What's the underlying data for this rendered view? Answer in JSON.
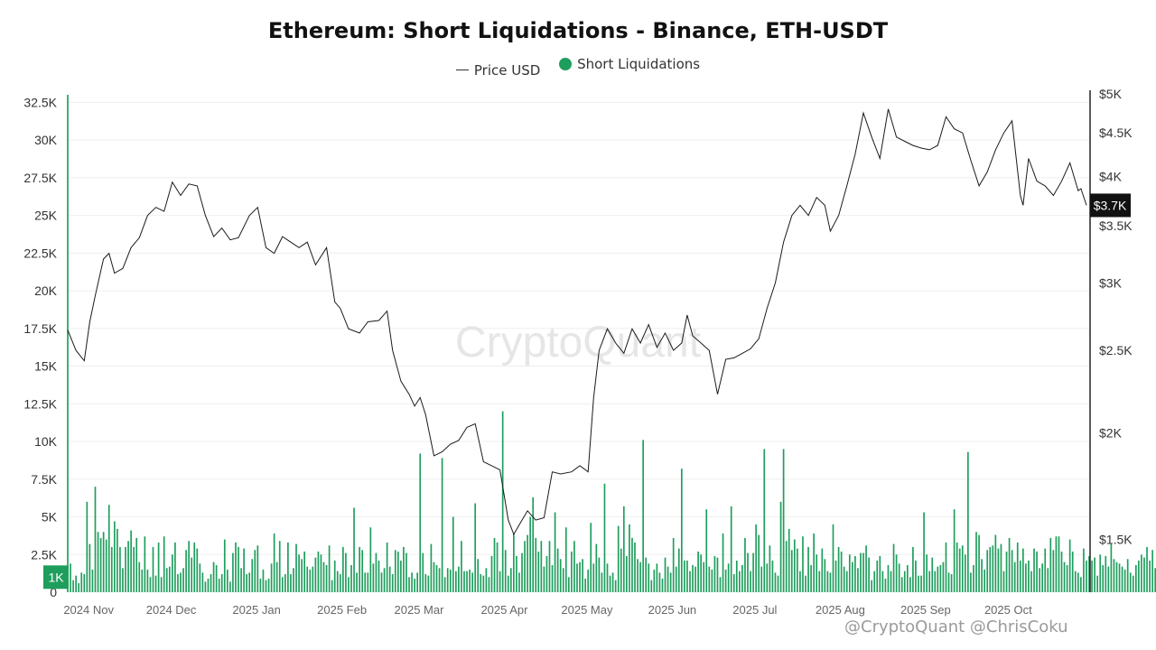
{
  "colors": {
    "liq": "#1e9e5c",
    "price": "#1a1a1a",
    "grid": "#efefef"
  },
  "watermark_text": "@CryptoQuant @ChrisCoku",
  "chart_data": {
    "type": "bar+line",
    "title": "Ethereum: Short Liquidations - Binance, ETH-USDT",
    "legend": {
      "placement": "top-center",
      "price_label": "Price USD",
      "liq_label": "Short Liquidations"
    },
    "watermark": "CryptoQuant",
    "x_range": [
      "2024-10-29",
      "2025-11-04"
    ],
    "x_ticks": [
      {
        "date": "2024-11-01",
        "label": "2024 Nov"
      },
      {
        "date": "2024-12-01",
        "label": "2024 Dec"
      },
      {
        "date": "2025-01-01",
        "label": "2025 Jan"
      },
      {
        "date": "2025-02-01",
        "label": "2025 Feb"
      },
      {
        "date": "2025-03-01",
        "label": "2025 Mar"
      },
      {
        "date": "2025-04-01",
        "label": "2025 Apr"
      },
      {
        "date": "2025-05-01",
        "label": "2025 May"
      },
      {
        "date": "2025-06-01",
        "label": "2025 Jun"
      },
      {
        "date": "2025-07-01",
        "label": "2025 Jul"
      },
      {
        "date": "2025-08-01",
        "label": "2025 Aug"
      },
      {
        "date": "2025-09-01",
        "label": "2025 Sep"
      },
      {
        "date": "2025-10-01",
        "label": "2025 Oct"
      }
    ],
    "y_left": {
      "range": [
        0,
        33300
      ],
      "ticks": [
        0,
        2500,
        5000,
        7500,
        10000,
        12500,
        15000,
        17500,
        20000,
        22500,
        25000,
        27500,
        30000,
        32500
      ],
      "tick_labels": [
        "0",
        "2.5K",
        "5K",
        "7.5K",
        "10K",
        "12.5K",
        "15K",
        "17.5K",
        "20K",
        "22.5K",
        "25K",
        "27.5K",
        "30K",
        "32.5K"
      ],
      "marker": {
        "value": 1000,
        "label": "1K"
      }
    },
    "y_right": {
      "scale": "log",
      "range": [
        1300,
        5050
      ],
      "ticks": [
        1500,
        2000,
        2500,
        3000,
        3500,
        4000,
        4500,
        5000
      ],
      "tick_labels": [
        "$1.5K",
        "$2K",
        "$2.5K",
        "$3K",
        "$3.5K",
        "$4K",
        "$4.5K",
        "$5K"
      ],
      "marker": {
        "value": 3700,
        "label": "$3.7K"
      }
    },
    "liq_start": "2024-10-29",
    "short_liquidations": [
      33000,
      1900,
      800,
      1100,
      600,
      1300,
      1200,
      6000,
      3200,
      1500,
      7000,
      4000,
      3600,
      4000,
      3500,
      5800,
      3000,
      4700,
      4200,
      3000,
      1600,
      3000,
      3400,
      4100,
      3000,
      3600,
      2000,
      1500,
      3700,
      1500,
      1000,
      3000,
      1100,
      3300,
      1000,
      3700,
      1600,
      1700,
      2500,
      3300,
      1200,
      1300,
      1600,
      2800,
      3400,
      2300,
      3300,
      2900,
      1900,
      1300,
      700,
      900,
      1200,
      2000,
      1800,
      900,
      1200,
      3500,
      1500,
      700,
      2600,
      3300,
      3000,
      1600,
      2900,
      1200,
      1300,
      2200,
      2800,
      3100,
      900,
      1500,
      800,
      900,
      1900,
      3900,
      2000,
      3400,
      1000,
      1200,
      3300,
      1200,
      1600,
      3200,
      2500,
      2200,
      2700,
      1700,
      1500,
      1700,
      2300,
      2700,
      2500,
      2000,
      1800,
      3100,
      800,
      2100,
      1400,
      1200,
      3000,
      2600,
      1000,
      1800,
      5600,
      1300,
      3000,
      2800,
      1300,
      1300,
      4300,
      1900,
      2600,
      2100,
      1300,
      1600,
      3300,
      1700,
      1200,
      2800,
      2700,
      2100,
      3000,
      2600,
      1000,
      1300,
      900,
      1300,
      9200,
      2600,
      1200,
      1100,
      3200,
      2000,
      1800,
      1600,
      8900,
      1000,
      1600,
      1500,
      5000,
      1400,
      1700,
      3400,
      1400,
      1400,
      1500,
      1300,
      5900,
      2200,
      1200,
      1100,
      1600,
      1000,
      2400,
      3600,
      3300,
      1400,
      12000,
      2800,
      1100,
      1600,
      3900,
      2400,
      1300,
      2600,
      3400,
      3800,
      5000,
      6300,
      3600,
      2700,
      3400,
      1700,
      2400,
      3400,
      1800,
      5300,
      2900,
      2200,
      1600,
      4300,
      1000,
      2700,
      3400,
      1900,
      2000,
      2200,
      900,
      1500,
      4600,
      1900,
      3200,
      2300,
      1300,
      7200,
      1900,
      1100,
      1300,
      800,
      4400,
      2900,
      5700,
      2400,
      4500,
      3600,
      3300,
      2200,
      2000,
      10100,
      2300,
      1900,
      800,
      1500,
      1900,
      1300,
      900,
      2300,
      1700,
      1300,
      3600,
      1700,
      2900,
      8200,
      2100,
      2100,
      1400,
      1800,
      1700,
      2700,
      2500,
      2000,
      5500,
      1700,
      1500,
      2400,
      2300,
      1000,
      3900,
      1500,
      1900,
      5700,
      1200,
      2100,
      1400,
      1800,
      3600,
      2600,
      1400,
      2600,
      4500,
      3800,
      1700,
      9500,
      1900,
      3100,
      2100,
      1300,
      1100,
      6000,
      9500,
      3400,
      4200,
      2800,
      3500,
      2900,
      1400,
      3700,
      1100,
      3000,
      1800,
      3900,
      2500,
      1400,
      2900,
      2200,
      1400,
      1300,
      4500,
      2100,
      3000,
      2700,
      1700,
      1400,
      2500,
      2000,
      2400,
      1600,
      2600,
      2600,
      3100,
      2300,
      800,
      1400,
      2100,
      2400,
      1400,
      900,
      1800,
      1400,
      3200,
      2500,
      1900,
      1000,
      1400,
      1800,
      1000,
      3000,
      2100,
      1100,
      1100,
      5300,
      2500,
      1400,
      2300,
      1400,
      1700,
      1800,
      2000,
      3300,
      1300,
      1200,
      5500,
      3300,
      2900,
      3100,
      2500,
      9300,
      1300,
      1800,
      4000,
      3800,
      2200,
      1500,
      2800,
      3000,
      3100,
      3800,
      2900,
      3200,
      1400,
      2700,
      3600,
      2800,
      2000,
      3300,
      2100,
      2900,
      1900,
      2100,
      1400,
      2900,
      2700,
      1600,
      1900,
      2900,
      1600,
      3600,
      2800,
      3700,
      3700,
      2700,
      2000,
      1800,
      3500,
      2700,
      1400,
      1300,
      1000,
      2900,
      2100,
      2400,
      2100,
      2300,
      1100,
      2500,
      1800,
      2400,
      1700,
      3200,
      2200,
      2000,
      1900,
      1700,
      1500,
      2200,
      1300,
      1100,
      1800,
      2100,
      2500,
      2300,
      3000,
      2100,
      2800,
      1600,
      2100,
      2700,
      2000,
      5100,
      1800,
      1400,
      2600,
      1900,
      3100,
      2000,
      1200,
      1200,
      2700,
      2500,
      2500,
      1500,
      1900,
      2100,
      1800,
      32600,
      2700,
      3100,
      2500,
      2200,
      5300,
      2500,
      1700,
      2100,
      1900,
      1800,
      2000,
      1600,
      2300,
      2900,
      1100,
      3600,
      1200,
      1300,
      1400,
      1700,
      1100,
      1900,
      1600
    ],
    "price_usd": [
      [
        "2024-10-29",
        2640
      ],
      [
        "2024-11-01",
        2500
      ],
      [
        "2024-11-04",
        2430
      ],
      [
        "2024-11-06",
        2700
      ],
      [
        "2024-11-08",
        2900
      ],
      [
        "2024-11-11",
        3200
      ],
      [
        "2024-11-13",
        3250
      ],
      [
        "2024-11-15",
        3080
      ],
      [
        "2024-11-18",
        3120
      ],
      [
        "2024-11-21",
        3300
      ],
      [
        "2024-11-24",
        3390
      ],
      [
        "2024-11-27",
        3600
      ],
      [
        "2024-11-30",
        3680
      ],
      [
        "2024-12-03",
        3640
      ],
      [
        "2024-12-06",
        3940
      ],
      [
        "2024-12-09",
        3800
      ],
      [
        "2024-12-12",
        3920
      ],
      [
        "2024-12-15",
        3900
      ],
      [
        "2024-12-18",
        3600
      ],
      [
        "2024-12-21",
        3400
      ],
      [
        "2024-12-24",
        3480
      ],
      [
        "2024-12-27",
        3370
      ],
      [
        "2024-12-30",
        3390
      ],
      [
        "2025-01-03",
        3600
      ],
      [
        "2025-01-06",
        3680
      ],
      [
        "2025-01-09",
        3300
      ],
      [
        "2025-01-12",
        3250
      ],
      [
        "2025-01-15",
        3400
      ],
      [
        "2025-01-18",
        3350
      ],
      [
        "2025-01-21",
        3300
      ],
      [
        "2025-01-24",
        3350
      ],
      [
        "2025-01-27",
        3150
      ],
      [
        "2025-01-31",
        3300
      ],
      [
        "2025-02-03",
        2850
      ],
      [
        "2025-02-05",
        2800
      ],
      [
        "2025-02-08",
        2650
      ],
      [
        "2025-02-12",
        2620
      ],
      [
        "2025-02-15",
        2700
      ],
      [
        "2025-02-19",
        2710
      ],
      [
        "2025-02-22",
        2780
      ],
      [
        "2025-02-24",
        2500
      ],
      [
        "2025-02-27",
        2300
      ],
      [
        "2025-03-02",
        2220
      ],
      [
        "2025-03-04",
        2150
      ],
      [
        "2025-03-06",
        2200
      ],
      [
        "2025-03-08",
        2100
      ],
      [
        "2025-03-11",
        1880
      ],
      [
        "2025-03-14",
        1900
      ],
      [
        "2025-03-17",
        1940
      ],
      [
        "2025-03-20",
        1960
      ],
      [
        "2025-03-23",
        2030
      ],
      [
        "2025-03-26",
        2050
      ],
      [
        "2025-03-29",
        1850
      ],
      [
        "2025-04-01",
        1830
      ],
      [
        "2025-04-04",
        1810
      ],
      [
        "2025-04-07",
        1580
      ],
      [
        "2025-04-09",
        1520
      ],
      [
        "2025-04-11",
        1560
      ],
      [
        "2025-04-14",
        1620
      ],
      [
        "2025-04-17",
        1580
      ],
      [
        "2025-04-20",
        1590
      ],
      [
        "2025-04-23",
        1800
      ],
      [
        "2025-04-26",
        1790
      ],
      [
        "2025-04-30",
        1800
      ],
      [
        "2025-05-03",
        1830
      ],
      [
        "2025-05-06",
        1800
      ],
      [
        "2025-05-08",
        2200
      ],
      [
        "2025-05-10",
        2500
      ],
      [
        "2025-05-13",
        2650
      ],
      [
        "2025-05-16",
        2550
      ],
      [
        "2025-05-19",
        2480
      ],
      [
        "2025-05-22",
        2650
      ],
      [
        "2025-05-25",
        2550
      ],
      [
        "2025-05-28",
        2680
      ],
      [
        "2025-05-31",
        2520
      ],
      [
        "2025-06-03",
        2620
      ],
      [
        "2025-06-06",
        2500
      ],
      [
        "2025-06-09",
        2550
      ],
      [
        "2025-06-11",
        2750
      ],
      [
        "2025-06-13",
        2600
      ],
      [
        "2025-06-16",
        2550
      ],
      [
        "2025-06-19",
        2500
      ],
      [
        "2025-06-22",
        2220
      ],
      [
        "2025-06-25",
        2440
      ],
      [
        "2025-06-28",
        2450
      ],
      [
        "2025-07-01",
        2480
      ],
      [
        "2025-07-04",
        2510
      ],
      [
        "2025-07-07",
        2580
      ],
      [
        "2025-07-10",
        2800
      ],
      [
        "2025-07-13",
        3000
      ],
      [
        "2025-07-16",
        3350
      ],
      [
        "2025-07-19",
        3600
      ],
      [
        "2025-07-22",
        3700
      ],
      [
        "2025-07-25",
        3600
      ],
      [
        "2025-07-28",
        3780
      ],
      [
        "2025-07-31",
        3700
      ],
      [
        "2025-08-02",
        3450
      ],
      [
        "2025-08-05",
        3600
      ],
      [
        "2025-08-08",
        3900
      ],
      [
        "2025-08-11",
        4250
      ],
      [
        "2025-08-14",
        4750
      ],
      [
        "2025-08-17",
        4450
      ],
      [
        "2025-08-20",
        4200
      ],
      [
        "2025-08-23",
        4800
      ],
      [
        "2025-08-26",
        4450
      ],
      [
        "2025-08-29",
        4400
      ],
      [
        "2025-09-01",
        4350
      ],
      [
        "2025-09-04",
        4320
      ],
      [
        "2025-09-07",
        4300
      ],
      [
        "2025-09-10",
        4350
      ],
      [
        "2025-09-13",
        4700
      ],
      [
        "2025-09-16",
        4550
      ],
      [
        "2025-09-19",
        4500
      ],
      [
        "2025-09-22",
        4180
      ],
      [
        "2025-09-25",
        3900
      ],
      [
        "2025-09-28",
        4050
      ],
      [
        "2025-10-01",
        4300
      ],
      [
        "2025-10-04",
        4500
      ],
      [
        "2025-10-07",
        4650
      ],
      [
        "2025-10-10",
        3800
      ],
      [
        "2025-10-11",
        3700
      ],
      [
        "2025-10-13",
        4200
      ],
      [
        "2025-10-16",
        3950
      ],
      [
        "2025-10-19",
        3900
      ],
      [
        "2025-10-22",
        3800
      ],
      [
        "2025-10-25",
        3950
      ],
      [
        "2025-10-28",
        4150
      ],
      [
        "2025-10-31",
        3850
      ],
      [
        "2025-11-01",
        3870
      ],
      [
        "2025-11-03",
        3700
      ]
    ]
  }
}
